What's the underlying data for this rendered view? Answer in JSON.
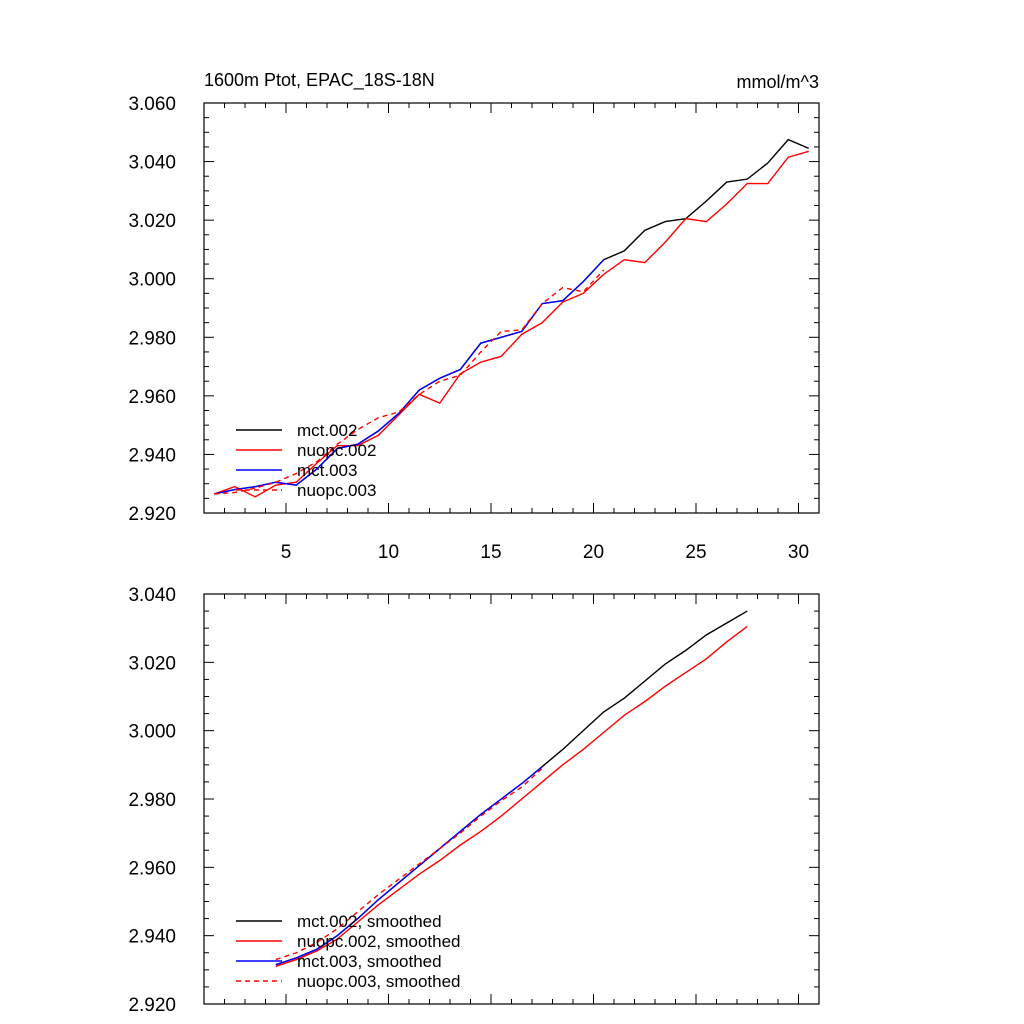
{
  "colors": {
    "mct.002": "#000000",
    "nuopc.002": "#ff0000",
    "mct.003": "#0000ff",
    "nuopc.003": "#ff0000",
    "frame": "#000000"
  },
  "chart_data": [
    {
      "type": "line",
      "title": "1600m Ptot, EPAC_18S-18N",
      "units": "mmol/m^3",
      "xlim": [
        1,
        31
      ],
      "ylim": [
        2.92,
        3.06
      ],
      "xticks": [
        5,
        10,
        15,
        20,
        25,
        30
      ],
      "xtick_labels": [
        "5",
        "10",
        "15",
        "20",
        "25",
        "30"
      ],
      "yticks": [
        2.92,
        2.94,
        2.96,
        2.98,
        3.0,
        3.02,
        3.04,
        3.06
      ],
      "ytick_labels": [
        "2.920",
        "2.940",
        "2.960",
        "2.980",
        "3.000",
        "3.020",
        "3.040",
        "3.060"
      ],
      "legend_position": "bottom-left",
      "series": [
        {
          "name": "mct.002",
          "color": "#000000",
          "dash": "solid",
          "x": [
            1.5,
            2.5,
            3.5,
            4.5,
            5.5,
            6.5,
            7.5,
            8.5,
            9.5,
            10.5,
            11.5,
            12.5,
            13.5,
            14.5,
            15.5,
            16.5,
            17.5,
            18.5,
            19.5,
            20.5,
            21.5,
            22.5,
            23.5,
            24.5,
            25.5,
            26.5,
            27.5,
            28.5,
            29.5,
            30.5
          ],
          "values": [
            2.9265,
            2.928,
            2.929,
            2.9305,
            2.9295,
            2.935,
            2.942,
            2.9435,
            2.948,
            2.954,
            2.962,
            2.966,
            2.969,
            2.978,
            2.98,
            2.982,
            2.9915,
            2.9925,
            2.999,
            3.0065,
            3.0095,
            3.0165,
            3.0195,
            3.0205,
            3.0265,
            3.033,
            3.034,
            3.0395,
            3.0475,
            3.0445
          ]
        },
        {
          "name": "nuopc.002",
          "color": "#ff0000",
          "dash": "solid",
          "x": [
            1.5,
            2.5,
            3.5,
            4.5,
            5.5,
            6.5,
            7.5,
            8.5,
            9.5,
            10.5,
            11.5,
            12.5,
            13.5,
            14.5,
            15.5,
            16.5,
            17.5,
            18.5,
            19.5,
            20.5,
            21.5,
            22.5,
            23.5,
            24.5,
            25.5,
            26.5,
            27.5,
            28.5,
            29.5,
            30.5
          ],
          "values": [
            2.9265,
            2.929,
            2.9255,
            2.9295,
            2.9305,
            2.937,
            2.943,
            2.943,
            2.9465,
            2.9535,
            2.9605,
            2.9575,
            2.9675,
            2.9715,
            2.9735,
            2.981,
            2.985,
            2.992,
            2.995,
            3.0015,
            3.0065,
            3.0055,
            3.0125,
            3.0205,
            3.0195,
            3.0255,
            3.0325,
            3.0325,
            3.0415,
            3.0435
          ]
        },
        {
          "name": "mct.003",
          "color": "#0000ff",
          "dash": "solid",
          "x": [
            1.5,
            2.5,
            3.5,
            4.5,
            5.5,
            6.5,
            7.5,
            8.5,
            9.5,
            10.5,
            11.5,
            12.5,
            13.5,
            14.5,
            15.5,
            16.5,
            17.5,
            18.5,
            19.5,
            20.5
          ],
          "values": [
            2.9265,
            2.928,
            2.929,
            2.9305,
            2.9295,
            2.935,
            2.942,
            2.9435,
            2.948,
            2.954,
            2.962,
            2.966,
            2.969,
            2.978,
            2.98,
            2.982,
            2.9915,
            2.9925,
            2.999,
            3.0065
          ]
        },
        {
          "name": "nuopc.003",
          "color": "#ff0000",
          "dash": "dashed",
          "x": [
            1.5,
            2.5,
            3.5,
            4.5,
            5.5,
            6.5,
            7.5,
            8.5,
            9.5,
            10.5,
            11.5,
            12.5,
            13.5,
            14.5,
            15.5,
            16.5,
            17.5,
            18.5,
            19.5,
            20.5
          ],
          "values": [
            2.9265,
            2.927,
            2.9285,
            2.9305,
            2.9335,
            2.9375,
            2.9435,
            2.9485,
            2.9525,
            2.9545,
            2.9605,
            2.965,
            2.967,
            2.975,
            2.982,
            2.9825,
            2.9915,
            2.997,
            2.9955,
            3.003
          ]
        }
      ]
    },
    {
      "type": "line",
      "title": "",
      "xlim": [
        1,
        31
      ],
      "ylim": [
        2.92,
        3.04
      ],
      "xticks": [
        5,
        10,
        15,
        20,
        25,
        30
      ],
      "xtick_labels": [],
      "yticks": [
        2.92,
        2.94,
        2.96,
        2.98,
        3.0,
        3.02,
        3.04
      ],
      "ytick_labels": [
        "2.920",
        "2.940",
        "2.960",
        "2.980",
        "3.000",
        "3.020",
        "3.040"
      ],
      "legend_position": "bottom-left",
      "series": [
        {
          "name": "mct.002, smoothed",
          "color": "#000000",
          "dash": "solid",
          "x": [
            4.5,
            5.5,
            6.5,
            7.5,
            8.5,
            9.5,
            10.5,
            11.5,
            12.5,
            13.5,
            14.5,
            15.5,
            16.5,
            17.5,
            18.5,
            19.5,
            20.5,
            21.5,
            22.5,
            23.5,
            24.5,
            25.5,
            26.5,
            27.5
          ],
          "values": [
            2.9315,
            2.9335,
            2.936,
            2.94,
            2.945,
            2.9505,
            2.9555,
            2.9605,
            2.9655,
            2.9705,
            2.9755,
            2.98,
            2.9845,
            2.9895,
            2.9945,
            3.0,
            3.0055,
            3.0095,
            3.0145,
            3.0195,
            3.0235,
            3.028,
            3.0315,
            3.035
          ]
        },
        {
          "name": "nuopc.002, smoothed",
          "color": "#ff0000",
          "dash": "solid",
          "x": [
            4.5,
            5.5,
            6.5,
            7.5,
            8.5,
            9.5,
            10.5,
            11.5,
            12.5,
            13.5,
            14.5,
            15.5,
            16.5,
            17.5,
            18.5,
            19.5,
            20.5,
            21.5,
            22.5,
            23.5,
            24.5,
            25.5,
            26.5,
            27.5
          ],
          "values": [
            2.931,
            2.933,
            2.9355,
            2.939,
            2.944,
            2.949,
            2.9535,
            2.958,
            2.962,
            2.9665,
            2.9705,
            2.975,
            2.98,
            2.985,
            2.99,
            2.9945,
            2.9995,
            3.0045,
            3.0085,
            3.013,
            3.017,
            3.021,
            3.026,
            3.0305
          ]
        },
        {
          "name": "mct.003, smoothed",
          "color": "#0000ff",
          "dash": "solid",
          "x": [
            4.5,
            5.5,
            6.5,
            7.5,
            8.5,
            9.5,
            10.5,
            11.5,
            12.5,
            13.5,
            14.5,
            15.5,
            16.5,
            17.5
          ],
          "values": [
            2.9315,
            2.9335,
            2.936,
            2.94,
            2.945,
            2.9505,
            2.9555,
            2.9605,
            2.9655,
            2.9705,
            2.9755,
            2.98,
            2.9845,
            2.9895
          ]
        },
        {
          "name": "nuopc.003, smoothed",
          "color": "#ff0000",
          "dash": "dashed",
          "x": [
            4.5,
            5.5,
            6.5,
            7.5,
            8.5,
            9.5,
            10.5,
            11.5,
            12.5,
            13.5,
            14.5,
            15.5,
            16.5,
            17.5
          ],
          "values": [
            2.933,
            2.935,
            2.938,
            2.942,
            2.947,
            2.952,
            2.9565,
            2.961,
            2.9655,
            2.97,
            2.975,
            2.9795,
            2.9835,
            2.989
          ]
        }
      ]
    }
  ]
}
